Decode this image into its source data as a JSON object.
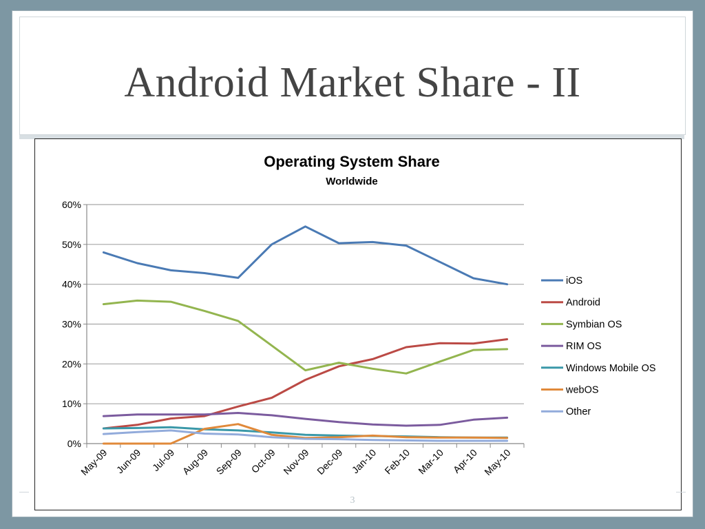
{
  "slide": {
    "title": "Android Market Share - II",
    "page_number": "3"
  },
  "chart_data": {
    "type": "line",
    "title": "Operating System Share",
    "subtitle": "Worldwide",
    "xlabel": "",
    "ylabel": "",
    "ylim": [
      0,
      60
    ],
    "yticks": [
      "0%",
      "10%",
      "20%",
      "30%",
      "40%",
      "50%",
      "60%"
    ],
    "grid": true,
    "legend_position": "right",
    "categories": [
      "May-09",
      "Jun-09",
      "Jul-09",
      "Aug-09",
      "Sep-09",
      "Oct-09",
      "Nov-09",
      "Dec-09",
      "Jan-10",
      "Feb-10",
      "Mar-10",
      "Apr-10",
      "May-10"
    ],
    "series": [
      {
        "name": "iOS",
        "color": "#4a7ab4",
        "values": [
          48,
          45.3,
          43.5,
          42.8,
          41.6,
          50,
          54.5,
          50.3,
          50.6,
          49.7,
          45.6,
          41.5,
          40
        ]
      },
      {
        "name": "Android",
        "color": "#bb4a45",
        "values": [
          3.8,
          4.7,
          6.3,
          6.9,
          9.3,
          11.5,
          16,
          19.4,
          21.2,
          24.2,
          25.2,
          25.1,
          26.2
        ]
      },
      {
        "name": "Symbian OS",
        "color": "#93b54f",
        "values": [
          35,
          35.9,
          35.6,
          33.3,
          30.8,
          24.6,
          18.4,
          20.3,
          18.8,
          17.6,
          20.6,
          23.5,
          23.7
        ]
      },
      {
        "name": "RIM OS",
        "color": "#7b5b9e",
        "values": [
          6.9,
          7.3,
          7.3,
          7.3,
          7.7,
          7.1,
          6.2,
          5.4,
          4.8,
          4.5,
          4.7,
          6,
          6.5
        ]
      },
      {
        "name": "Windows Mobile OS",
        "color": "#3a98a8",
        "values": [
          3.8,
          3.9,
          4.1,
          3.6,
          3.3,
          2.8,
          2.2,
          2,
          1.9,
          1.8,
          1.6,
          1.5,
          1.5
        ]
      },
      {
        "name": "webOS",
        "color": "#e0893a",
        "values": [
          0,
          0,
          0,
          3.7,
          4.9,
          2.2,
          1.4,
          1.6,
          2,
          1.6,
          1.5,
          1.5,
          1.4
        ]
      },
      {
        "name": "Other",
        "color": "#92abdb",
        "values": [
          2.4,
          2.9,
          3.3,
          2.5,
          2.3,
          1.6,
          1.2,
          1.1,
          0.9,
          0.8,
          0.7,
          0.7,
          0.7
        ]
      }
    ]
  }
}
